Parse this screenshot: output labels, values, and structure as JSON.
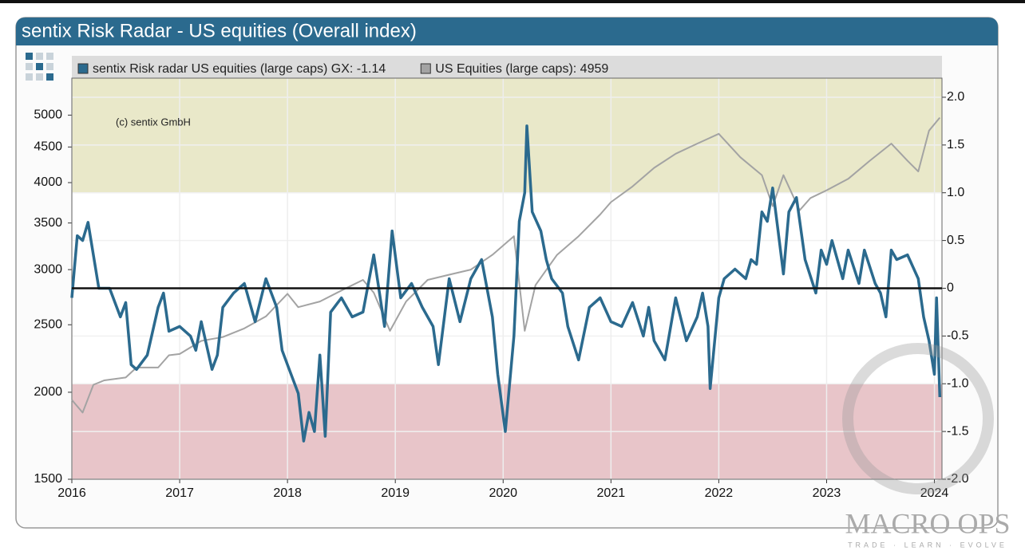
{
  "chart_data": {
    "type": "line",
    "title": "sentix Risk Radar - US equities (Overall index)",
    "annotation": "(c) sentix GmbH",
    "watermark": {
      "title": "MACRO OPS",
      "tagline": "TRADE · LEARN · EVOLVE"
    },
    "xlim": [
      2016,
      2024.07
    ],
    "xticks": [
      2016,
      2017,
      2018,
      2019,
      2020,
      2021,
      2022,
      2023,
      2024
    ],
    "ylim": [
      1500,
      5650
    ],
    "yscale": "log",
    "yticks": [
      1500,
      2000,
      2500,
      3000,
      3500,
      4000,
      4500,
      5000
    ],
    "y2lim": [
      -2,
      2.2
    ],
    "y2ticks": [
      {
        "value": -2,
        "label": "-2.0"
      },
      {
        "value": -1.5,
        "label": "-1.5"
      },
      {
        "value": -1,
        "label": "-1.0"
      },
      {
        "value": -0.5,
        "label": "-0.5"
      },
      0,
      {
        "value": 0.5,
        "label": "0.5"
      },
      {
        "value": 1,
        "label": "1.0"
      },
      {
        "value": 1.5,
        "label": "1.5"
      },
      {
        "value": 2,
        "label": "2.0"
      }
    ],
    "grid": true,
    "zero_line": 0,
    "bands": [
      {
        "from": 1,
        "to": 2.2,
        "color": "#e9e8c9"
      },
      {
        "from": -2,
        "to": -1,
        "color": "#e8c5c9"
      }
    ],
    "series": [
      {
        "name": "sentix Risk radar US equities (large caps) GX: -1.14",
        "color": "#2b6a8e",
        "axis": "y2",
        "x": [
          2016.0,
          2016.05,
          2016.1,
          2016.15,
          2016.25,
          2016.35,
          2016.45,
          2016.5,
          2016.55,
          2016.6,
          2016.7,
          2016.8,
          2016.85,
          2016.9,
          2017.0,
          2017.1,
          2017.15,
          2017.2,
          2017.3,
          2017.35,
          2017.4,
          2017.5,
          2017.6,
          2017.7,
          2017.8,
          2017.9,
          2017.95,
          2018.0,
          2018.1,
          2018.15,
          2018.2,
          2018.25,
          2018.3,
          2018.35,
          2018.4,
          2018.5,
          2018.6,
          2018.7,
          2018.8,
          2018.9,
          2018.97,
          2019.05,
          2019.15,
          2019.25,
          2019.35,
          2019.4,
          2019.5,
          2019.6,
          2019.7,
          2019.8,
          2019.9,
          2019.95,
          2020.02,
          2020.1,
          2020.15,
          2020.2,
          2020.22,
          2020.27,
          2020.35,
          2020.4,
          2020.45,
          2020.55,
          2020.6,
          2020.7,
          2020.8,
          2020.9,
          2021.0,
          2021.1,
          2021.2,
          2021.3,
          2021.35,
          2021.4,
          2021.5,
          2021.6,
          2021.7,
          2021.8,
          2021.85,
          2021.9,
          2021.92,
          2022.0,
          2022.05,
          2022.15,
          2022.25,
          2022.3,
          2022.35,
          2022.4,
          2022.45,
          2022.5,
          2022.55,
          2022.6,
          2022.65,
          2022.72,
          2022.8,
          2022.9,
          2022.95,
          2023.0,
          2023.05,
          2023.15,
          2023.2,
          2023.3,
          2023.35,
          2023.45,
          2023.5,
          2023.55,
          2023.6,
          2023.65,
          2023.75,
          2023.85,
          2023.9,
          2023.95,
          2024.0,
          2024.02,
          2024.05
        ],
        "values": [
          -0.1,
          0.55,
          0.5,
          0.69,
          0.0,
          0.0,
          -0.3,
          -0.15,
          -0.8,
          -0.85,
          -0.7,
          -0.2,
          -0.05,
          -0.45,
          -0.4,
          -0.5,
          -0.65,
          -0.35,
          -0.85,
          -0.7,
          -0.2,
          -0.05,
          0.05,
          -0.35,
          0.1,
          -0.2,
          -0.65,
          -0.8,
          -1.1,
          -1.6,
          -1.3,
          -1.5,
          -0.7,
          -1.55,
          -0.25,
          -0.1,
          -0.3,
          -0.25,
          0.35,
          -0.4,
          0.6,
          -0.1,
          0.05,
          -0.2,
          -0.4,
          -0.8,
          0.1,
          -0.35,
          0.1,
          0.3,
          -0.3,
          -0.9,
          -1.5,
          -0.5,
          0.7,
          1.0,
          1.7,
          0.8,
          0.6,
          0.3,
          0.1,
          -0.05,
          -0.4,
          -0.75,
          -0.2,
          -0.1,
          -0.35,
          -0.4,
          -0.15,
          -0.5,
          -0.2,
          -0.55,
          -0.75,
          -0.1,
          -0.55,
          -0.3,
          -0.05,
          -0.4,
          -1.05,
          -0.1,
          0.1,
          0.2,
          0.1,
          0.3,
          0.25,
          0.8,
          0.7,
          1.05,
          0.6,
          0.15,
          0.8,
          0.95,
          0.3,
          -0.05,
          0.4,
          0.25,
          0.5,
          0.1,
          0.4,
          0.05,
          0.4,
          0.05,
          -0.05,
          -0.3,
          0.4,
          0.3,
          0.35,
          0.1,
          -0.3,
          -0.55,
          -0.9,
          -0.1,
          -1.14
        ]
      },
      {
        "name": "US Equities (large caps): 4959",
        "color": "#a3a3a3",
        "axis": "y",
        "x": [
          2016.0,
          2016.1,
          2016.2,
          2016.3,
          2016.5,
          2016.6,
          2016.8,
          2016.9,
          2017.0,
          2017.2,
          2017.4,
          2017.6,
          2017.8,
          2018.0,
          2018.1,
          2018.3,
          2018.5,
          2018.7,
          2018.8,
          2018.95,
          2019.1,
          2019.3,
          2019.5,
          2019.7,
          2019.9,
          2020.1,
          2020.2,
          2020.3,
          2020.5,
          2020.7,
          2020.9,
          2021.0,
          2021.2,
          2021.4,
          2021.6,
          2021.8,
          2022.0,
          2022.2,
          2022.4,
          2022.5,
          2022.6,
          2022.75,
          2022.85,
          2023.0,
          2023.2,
          2023.4,
          2023.6,
          2023.75,
          2023.85,
          2023.95,
          2024.05
        ],
        "values": [
          1950,
          1870,
          2050,
          2080,
          2100,
          2170,
          2170,
          2260,
          2270,
          2370,
          2400,
          2470,
          2570,
          2770,
          2650,
          2700,
          2800,
          2900,
          2780,
          2450,
          2700,
          2900,
          2950,
          3000,
          3150,
          3350,
          2450,
          2850,
          3150,
          3350,
          3600,
          3750,
          3950,
          4200,
          4400,
          4550,
          4700,
          4350,
          4100,
          3700,
          4100,
          3650,
          3800,
          3900,
          4050,
          4300,
          4550,
          4300,
          4150,
          4750,
          4959
        ]
      }
    ]
  }
}
